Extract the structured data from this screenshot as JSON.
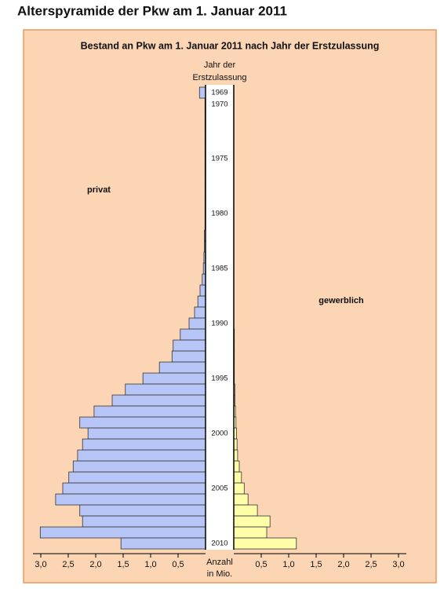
{
  "chart_data": {
    "type": "pyramid",
    "page_title": "Alterspyramide der Pkw am 1. Januar 2011",
    "title": "Bestand an Pkw am 1. Januar 2011 nach Jahr der Erstzulassung",
    "category_axis_label": [
      "Jahr der",
      "Erstzulassung"
    ],
    "value_axis_label": [
      "Anzahl",
      "in Mio."
    ],
    "categories": [
      "1969",
      "1970",
      null,
      null,
      null,
      null,
      "1975",
      null,
      null,
      null,
      null,
      "1980",
      null,
      null,
      null,
      null,
      "1985",
      null,
      null,
      null,
      null,
      "1990",
      null,
      null,
      null,
      null,
      "1995",
      null,
      null,
      null,
      null,
      "2000",
      null,
      null,
      null,
      null,
      "2005",
      null,
      null,
      null,
      null,
      "2010"
    ],
    "series": [
      {
        "name": "privat",
        "color": "#b7c6f7",
        "side": "left",
        "values": [
          0.11,
          0.01,
          0.01,
          0.01,
          0.01,
          0.01,
          0.01,
          0.01,
          0.01,
          0.01,
          0.01,
          0.01,
          0.01,
          0.02,
          0.02,
          0.03,
          0.04,
          0.06,
          0.1,
          0.14,
          0.2,
          0.3,
          0.46,
          0.59,
          0.61,
          0.84,
          1.14,
          1.46,
          1.7,
          2.03,
          2.29,
          2.14,
          2.24,
          2.33,
          2.41,
          2.49,
          2.6,
          2.73,
          2.29,
          2.24,
          3.01,
          1.54
        ]
      },
      {
        "name": "gewerblich",
        "color": "#ffffaa",
        "side": "right",
        "values": [
          0,
          0,
          0,
          0,
          0,
          0,
          0,
          0,
          0,
          0,
          0,
          0,
          0,
          0,
          0,
          0,
          0,
          0,
          0,
          0,
          0,
          0,
          0.01,
          0.01,
          0.01,
          0.01,
          0.01,
          0.02,
          0.02,
          0.03,
          0.04,
          0.05,
          0.06,
          0.07,
          0.1,
          0.14,
          0.19,
          0.26,
          0.43,
          0.66,
          0.6,
          1.14
        ]
      }
    ],
    "xlim": [
      0,
      3
    ],
    "xticks_left": [
      {
        "value": 3,
        "label": "3,0"
      },
      {
        "value": 2.5,
        "label": "2,5"
      },
      {
        "value": 2,
        "label": "2,0"
      },
      {
        "value": 1.5,
        "label": "1,5"
      },
      {
        "value": 1,
        "label": "1,0"
      },
      {
        "value": 0.5,
        "label": "0,5"
      }
    ],
    "xticks_right": [
      {
        "value": 0.5,
        "label": "0,5"
      },
      {
        "value": 1,
        "label": "1,0"
      },
      {
        "value": 1.5,
        "label": "1,5"
      },
      {
        "value": 2,
        "label": "2,0"
      },
      {
        "value": 2.5,
        "label": "2,5"
      },
      {
        "value": 3,
        "label": "3,0"
      }
    ]
  }
}
